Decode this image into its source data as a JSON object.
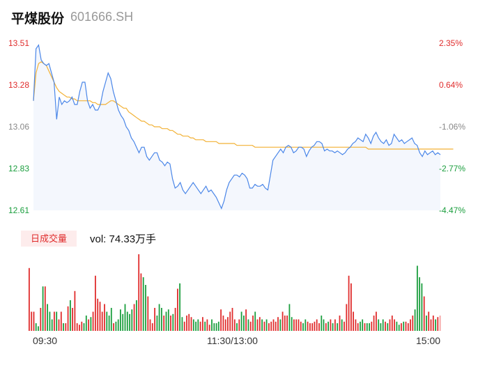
{
  "header": {
    "name": "平煤股份",
    "code": "601666.SH"
  },
  "volume_panel": {
    "tab_label": "日成交量",
    "vol_text": "vol: 74.33万手"
  },
  "colors": {
    "price_line": "#4a86e8",
    "avg_line": "#f2b134",
    "up": "#e02c2c",
    "down": "#1b9e3e",
    "neutral": "#888888"
  },
  "chart_data": [
    {
      "type": "line",
      "title": "",
      "x_ticks": [
        "09:30",
        "11:30/13:00",
        "15:00"
      ],
      "y_ticks_price": [
        "13.51",
        "13.28",
        "13.06",
        "12.83",
        "12.61"
      ],
      "y_ticks_pct": [
        "2.35%",
        "0.64%",
        "-1.06%",
        "-2.77%",
        "-4.47%"
      ],
      "ylim": [
        12.61,
        13.51
      ],
      "series": [
        {
          "kind": "price",
          "values": [
            13.2,
            13.48,
            13.5,
            13.42,
            13.4,
            13.39,
            13.4,
            13.35,
            13.3,
            13.1,
            13.22,
            13.18,
            13.2,
            13.19,
            13.2,
            13.22,
            13.18,
            13.18,
            13.25,
            13.3,
            13.3,
            13.2,
            13.16,
            13.18,
            13.15,
            13.15,
            13.18,
            13.25,
            13.3,
            13.35,
            13.32,
            13.25,
            13.2,
            13.15,
            13.12,
            13.1,
            13.06,
            13.04,
            13.0,
            12.98,
            12.95,
            12.92,
            12.95,
            12.95,
            12.9,
            12.88,
            12.9,
            12.92,
            12.92,
            12.88,
            12.87,
            12.85,
            12.87,
            12.86,
            12.78,
            12.73,
            12.74,
            12.76,
            12.72,
            12.7,
            12.72,
            12.74,
            12.76,
            12.74,
            12.72,
            12.7,
            12.72,
            12.74,
            12.71,
            12.72,
            12.7,
            12.68,
            12.65,
            12.62,
            12.66,
            12.72,
            12.76,
            12.78,
            12.8,
            12.8,
            12.79,
            12.81,
            12.8,
            12.78,
            12.73,
            12.73,
            12.75,
            12.74,
            12.74,
            12.75,
            12.73,
            12.72,
            12.8,
            12.88,
            12.9,
            12.92,
            12.94,
            12.92,
            12.95,
            12.96,
            12.95,
            12.92,
            12.93,
            12.95,
            12.95,
            12.94,
            12.9,
            12.93,
            12.95,
            12.96,
            12.98,
            12.98,
            12.97,
            12.93,
            12.94,
            12.93,
            12.93,
            12.92,
            12.93,
            12.92,
            12.91,
            12.92,
            12.94,
            12.95,
            12.97,
            12.98,
            13.0,
            12.99,
            12.98,
            13.02,
            13.0,
            12.97,
            13.01,
            13.03,
            13.0,
            12.98,
            12.97,
            12.99,
            12.96,
            12.97,
            13.02,
            13.0,
            12.98,
            12.99,
            12.97,
            12.98,
            12.99,
            13.0,
            12.97,
            12.96,
            12.92,
            12.9,
            12.93,
            12.91,
            12.92,
            12.93,
            12.91,
            12.92,
            12.91
          ]
        },
        {
          "kind": "average",
          "values": [
            13.2,
            13.35,
            13.4,
            13.41,
            13.4,
            13.39,
            13.36,
            13.33,
            13.3,
            13.27,
            13.25,
            13.24,
            13.23,
            13.22,
            13.22,
            13.21,
            13.21,
            13.2,
            13.2,
            13.2,
            13.2,
            13.2,
            13.2,
            13.19,
            13.19,
            13.18,
            13.18,
            13.18,
            13.18,
            13.19,
            13.2,
            13.2,
            13.19,
            13.18,
            13.17,
            13.16,
            13.16,
            13.14,
            13.13,
            13.12,
            13.11,
            13.1,
            13.09,
            13.09,
            13.08,
            13.07,
            13.07,
            13.06,
            13.06,
            13.06,
            13.05,
            13.05,
            13.05,
            13.04,
            13.04,
            13.03,
            13.02,
            13.02,
            13.01,
            13.01,
            13.01,
            13.0,
            13.0,
            12.99,
            12.99,
            12.99,
            12.99,
            12.98,
            12.98,
            12.98,
            12.98,
            12.98,
            12.97,
            12.97,
            12.97,
            12.97,
            12.97,
            12.97,
            12.97,
            12.96,
            12.96,
            12.96,
            12.96,
            12.96,
            12.96,
            12.96,
            12.95,
            12.95,
            12.95,
            12.95,
            12.95,
            12.95,
            12.95,
            12.95,
            12.95,
            12.95,
            12.95,
            12.95,
            12.95,
            12.95,
            12.95,
            12.95,
            12.95,
            12.95,
            12.95,
            12.95,
            12.95,
            12.95,
            12.95,
            12.95,
            12.95,
            12.95,
            12.95,
            12.95,
            12.95,
            12.95,
            12.95,
            12.95,
            12.95,
            12.95,
            12.95,
            12.95,
            12.95,
            12.95,
            12.95,
            12.95,
            12.95,
            12.95,
            12.95,
            12.95,
            12.94,
            12.94,
            12.94,
            12.94,
            12.94,
            12.94,
            12.94,
            12.94,
            12.94,
            12.94,
            12.94,
            12.94,
            12.94,
            12.94,
            12.94,
            12.94,
            12.94,
            12.94,
            12.94,
            12.94,
            12.94,
            12.94,
            12.94,
            12.94,
            12.94,
            12.94,
            12.94,
            12.94,
            12.94,
            12.94,
            12.94,
            12.94,
            12.94,
            12.94
          ]
        }
      ]
    },
    {
      "type": "bar",
      "title": "",
      "values": [
        82,
        25,
        25,
        10,
        6,
        30,
        58,
        58,
        35,
        25,
        15,
        25,
        25,
        15,
        25,
        10,
        10,
        32,
        40,
        30,
        52,
        10,
        8,
        12,
        10,
        20,
        15,
        18,
        25,
        72,
        42,
        38,
        25,
        35,
        25,
        20,
        30,
        10,
        12,
        15,
        28,
        22,
        35,
        25,
        22,
        28,
        35,
        40,
        100,
        75,
        70,
        60,
        45,
        15,
        10,
        30,
        20,
        35,
        30,
        20,
        25,
        28,
        20,
        22,
        30,
        55,
        62,
        18,
        12,
        20,
        22,
        18,
        15,
        12,
        15,
        12,
        18,
        12,
        15,
        8,
        15,
        10,
        10,
        12,
        28,
        20,
        15,
        18,
        25,
        30,
        15,
        10,
        15,
        25,
        20,
        28,
        15,
        12,
        20,
        25,
        15,
        18,
        15,
        12,
        15,
        10,
        12,
        15,
        12,
        18,
        15,
        25,
        20,
        20,
        35,
        18,
        15,
        15,
        15,
        12,
        10,
        15,
        12,
        10,
        10,
        12,
        15,
        10,
        20,
        15,
        10,
        12,
        15,
        10,
        15,
        10,
        20,
        15,
        12,
        35,
        72,
        62,
        25,
        15,
        10,
        12,
        15,
        10,
        10,
        10,
        12,
        20,
        25,
        15,
        10,
        15,
        12,
        10,
        15,
        20,
        15,
        12,
        8,
        10,
        12,
        12,
        10,
        15,
        20,
        28,
        85,
        70,
        62,
        45,
        20,
        25,
        15,
        20,
        15,
        18,
        20
      ]
    }
  ]
}
